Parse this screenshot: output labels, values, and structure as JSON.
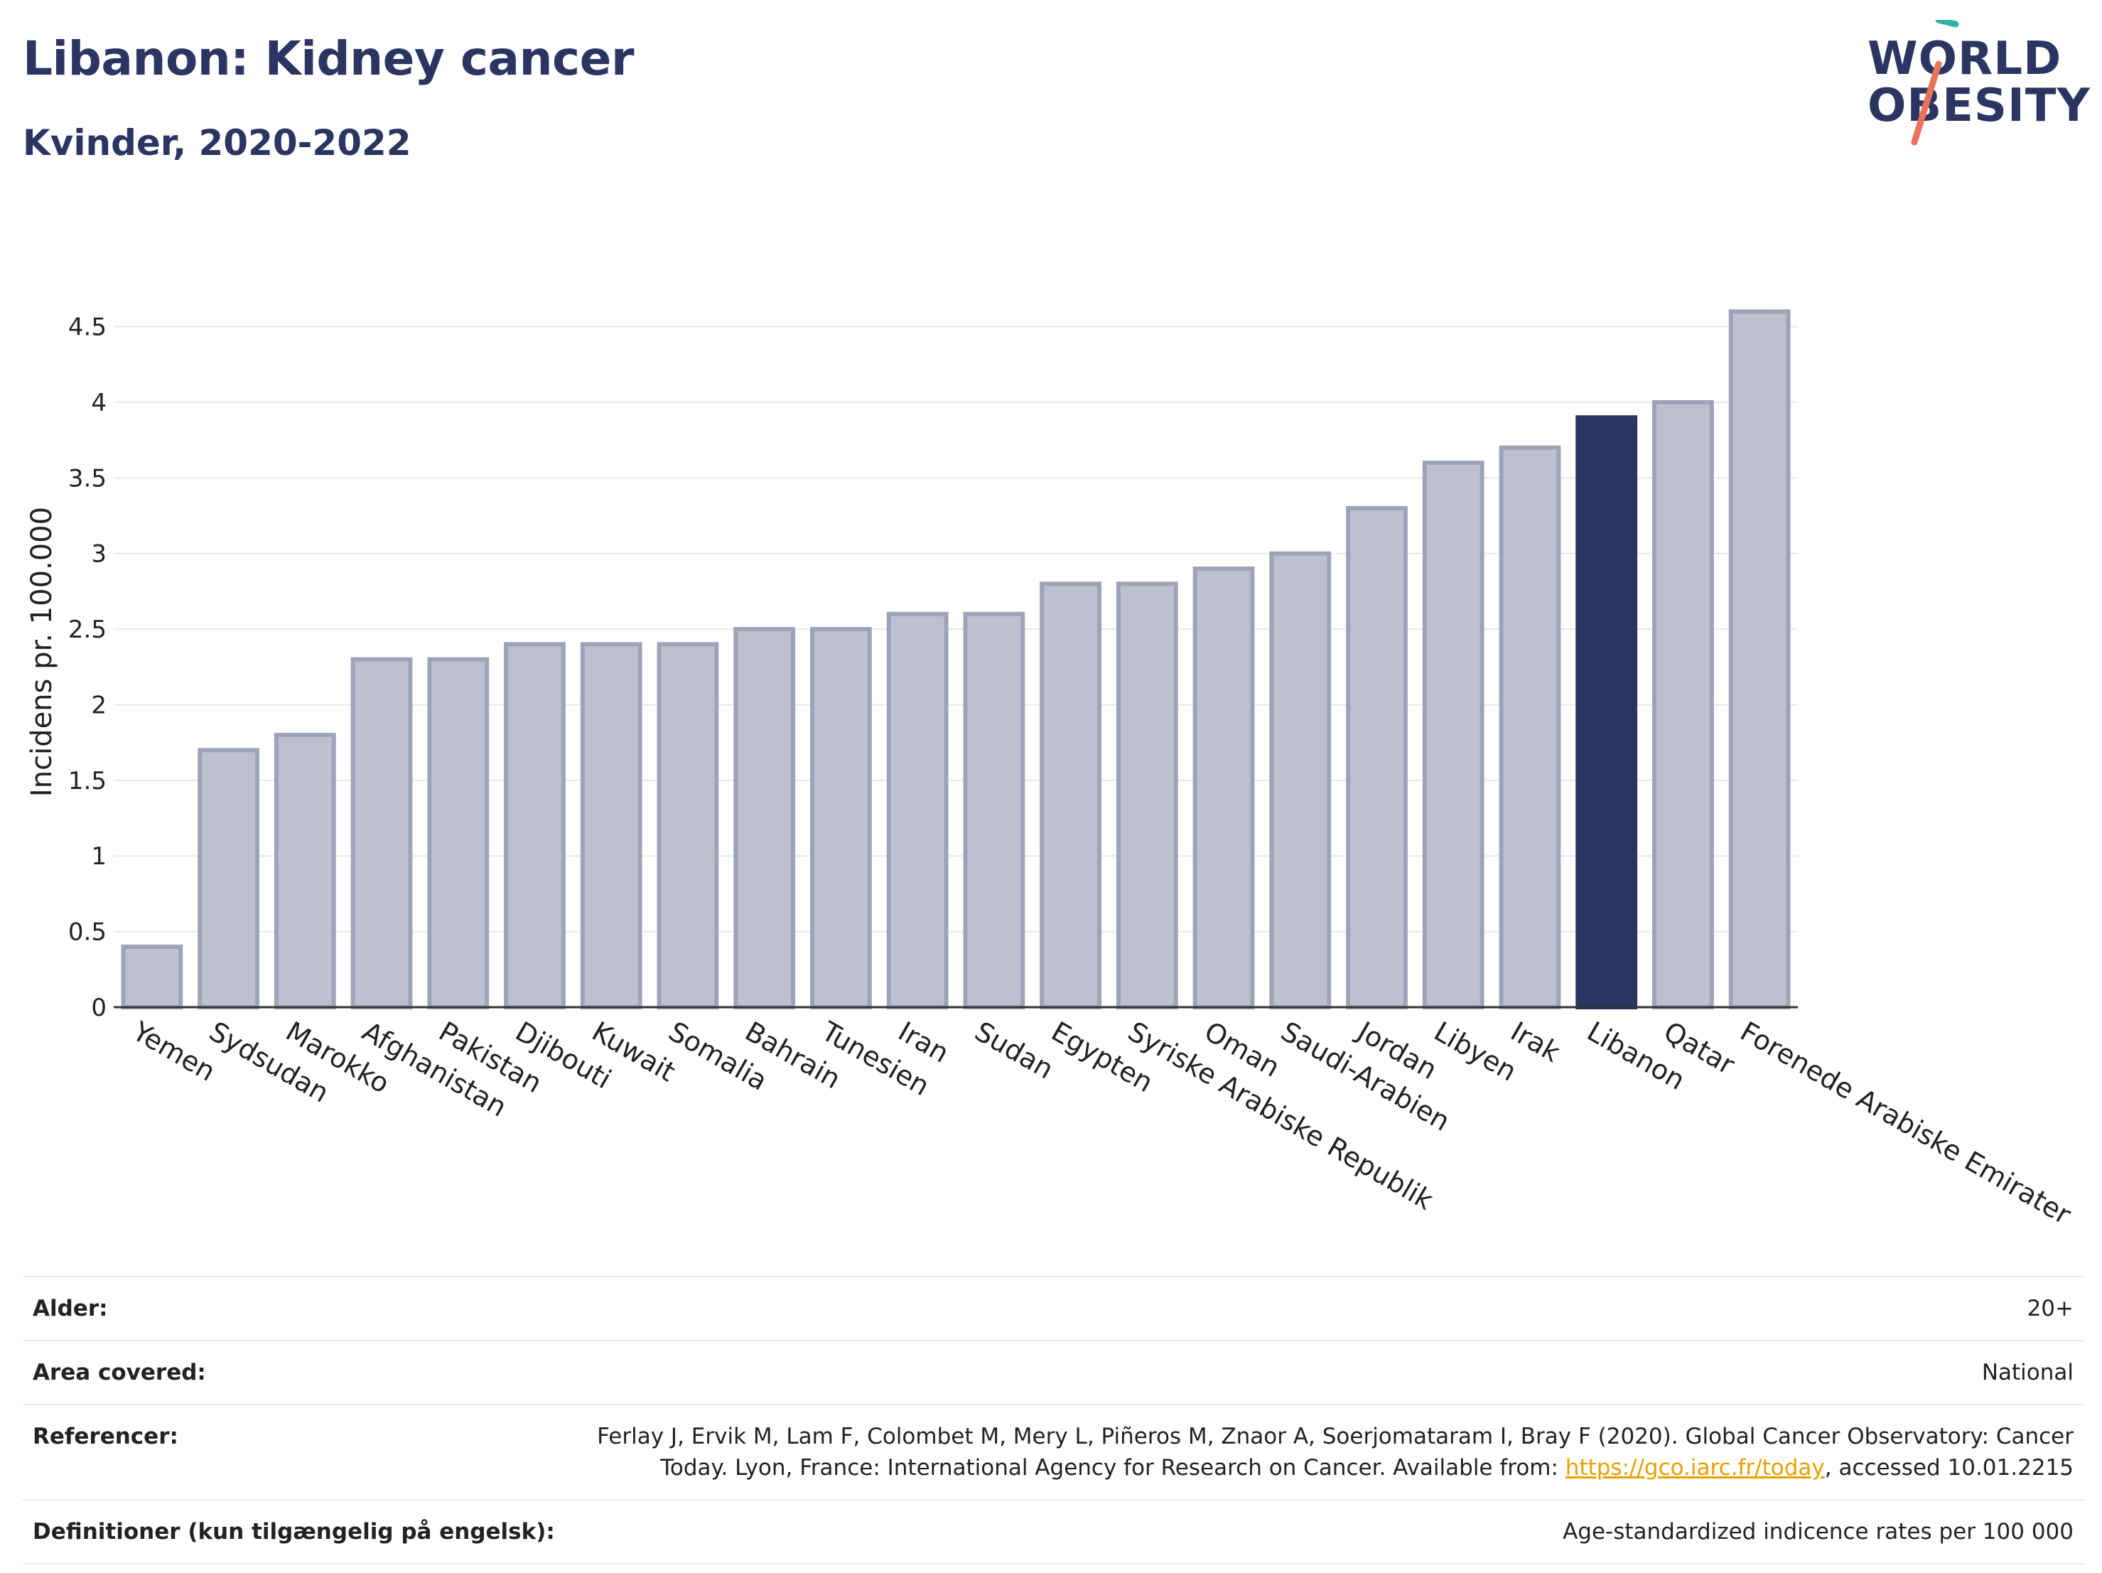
{
  "header": {
    "title": "Libanon: Kidney cancer",
    "subtitle": "Kvinder, 2020-2022"
  },
  "logo": {
    "line1": "WORLD",
    "line2": "OBESITY",
    "colors": {
      "text": "#2b3561",
      "slash_top": "#2bb5a8",
      "slash_bottom": "#e8735a"
    }
  },
  "chart_data": {
    "type": "bar",
    "ylabel": "Incidens pr. 100.000",
    "ylim": [
      0,
      4.7
    ],
    "yticks": [
      0,
      0.5,
      1,
      1.5,
      2,
      2.5,
      3,
      3.5,
      4,
      4.5
    ],
    "ytick_labels": [
      "0",
      "0.5",
      "1",
      "1.5",
      "2",
      "2.5",
      "3",
      "3.5",
      "4",
      "4.5"
    ],
    "grid": true,
    "highlight": "Libanon",
    "colors": {
      "bar": "#bdc0cf",
      "bar_edge": "#9ea3b8",
      "highlight": "#2b3561"
    },
    "categories": [
      "Yemen",
      "Sydsudan",
      "Marokko",
      "Afghanistan",
      "Pakistan",
      "Djibouti",
      "Kuwait",
      "Somalia",
      "Bahrain",
      "Tunesien",
      "Iran",
      "Sudan",
      "Egypten",
      "Syriske Arabiske Republik",
      "Oman",
      "Saudi-Arabien",
      "Jordan",
      "Libyen",
      "Irak",
      "Libanon",
      "Qatar",
      "Forenede Arabiske Emirater"
    ],
    "values": [
      0.4,
      1.7,
      1.8,
      2.3,
      2.3,
      2.4,
      2.4,
      2.4,
      2.5,
      2.5,
      2.6,
      2.6,
      2.8,
      2.8,
      2.9,
      3.0,
      3.3,
      3.6,
      3.7,
      3.9,
      4.0,
      4.6
    ]
  },
  "info": {
    "rows": [
      {
        "label": "Alder:",
        "value": "20+"
      },
      {
        "label": "Area covered:",
        "value": "National"
      },
      {
        "label": "Referencer:",
        "value_line1": "Ferlay J, Ervik M, Lam F, Colombet M, Mery L, Piñeros M, Znaor A, Soerjomataram I, Bray F (2020). Global Cancer Observatory: Cancer",
        "value_line2_pre": "Today. Lyon, France: International Agency for Research on Cancer. Available from: ",
        "link": "https://gco.iarc.fr/today",
        "value_line2_post": ", accessed 10.01.2215"
      },
      {
        "label": "Definitioner (kun tilgængelig på engelsk):",
        "value": "Age-standardized indicence rates per 100 000"
      }
    ]
  }
}
